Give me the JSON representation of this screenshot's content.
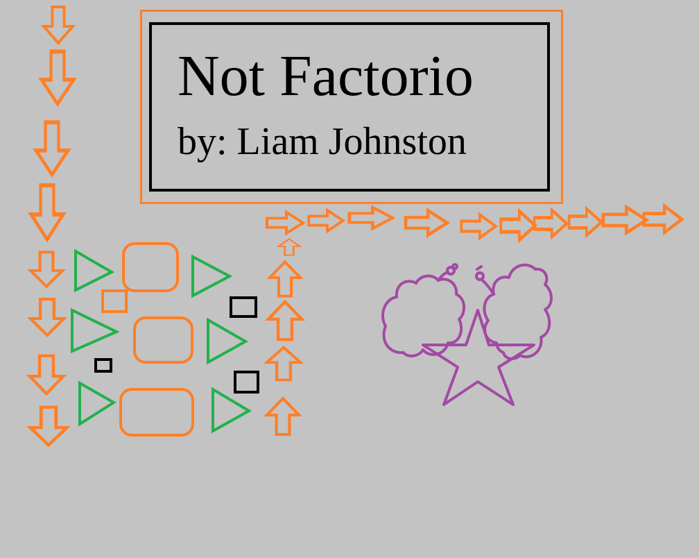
{
  "title_card": {
    "title": "Not Factorio",
    "author": "by: Liam Johnston"
  },
  "colors": {
    "background": "#c3c3c3",
    "conveyor": "#ff7f27",
    "inserter": "#22b14c",
    "machine": "#ff7f27",
    "item": "#000000",
    "creature": "#a349a4"
  },
  "icons": {
    "conveyor": "arrow-icon",
    "inserter": "triangle-icon",
    "assembler": "rounded-rect-icon",
    "item": "square-icon",
    "enemy": "cloud-creature-icon",
    "target": "star-icon"
  }
}
